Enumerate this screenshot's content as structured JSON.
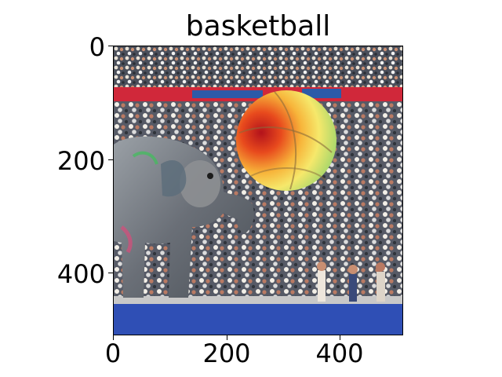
{
  "figure": {
    "title": "basketball",
    "y_ticks": [
      "0",
      "200",
      "400"
    ],
    "x_ticks": [
      "0",
      "200",
      "400"
    ],
    "image_description_name": "elephant-with-heatmap-ball"
  },
  "colors": {
    "background": "#ffffff",
    "banner_red": "#d0283a",
    "banner_blue": "#2c5aa8",
    "crowd_dark": "#3a3f4a",
    "court_blue": "#2f4fb5",
    "heat_red": "#d62020",
    "heat_yellow": "#ffe24a",
    "heat_green": "#9fd86a",
    "elephant_gray": "#7c8087"
  }
}
